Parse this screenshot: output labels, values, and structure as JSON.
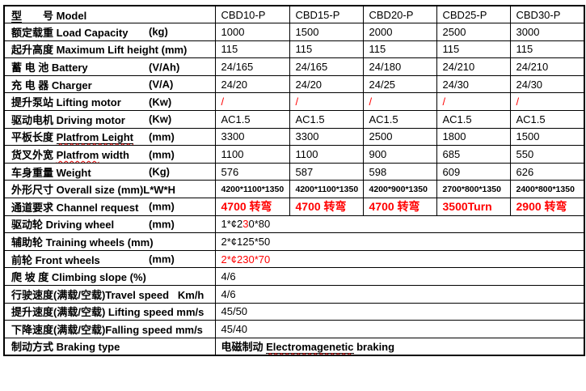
{
  "colors": {
    "accent_red": "#ff0000",
    "border": "#000000",
    "background": "#ffffff"
  },
  "table": {
    "models": [
      "CBD10-P",
      "CBD15-P",
      "CBD20-P",
      "CBD25-P",
      "CBD30-P"
    ],
    "rows": [
      {
        "label": [
          {
            "t": "型",
            "u": true
          },
          {
            "t": "　　号 Model"
          }
        ],
        "unit": "",
        "values": [
          "CBD10-P",
          "CBD15-P",
          "CBD20-P",
          "CBD25-P",
          "CBD30-P"
        ]
      },
      {
        "label": "额定载重 Load Capacity",
        "unit": "(kg)",
        "values": [
          "1000",
          "1500",
          "2000",
          "2500",
          "3000"
        ]
      },
      {
        "label": "起升高度 Maximum Lift height (mm)",
        "unit": "",
        "values": [
          "115",
          "115",
          "115",
          "115",
          "115"
        ]
      },
      {
        "label": "蓄 电 池 Battery",
        "unit": "(V/Ah)",
        "values": [
          "24/165",
          "24/165",
          "24/180",
          "24/210",
          "24/210"
        ]
      },
      {
        "label": "充 电 器 Charger",
        "unit": "(V/A)",
        "values": [
          "24/20",
          "24/20",
          "24/25",
          "24/30",
          "24/30"
        ]
      },
      {
        "label": "提升泵站 Lifting motor",
        "unit": "(Kw)",
        "values": [
          "/",
          "/",
          "/",
          "/",
          "/"
        ],
        "vclass": "red"
      },
      {
        "label": "驱动电机 Driving motor",
        "unit": "(Kw)",
        "values": [
          "AC1.5",
          "AC1.5",
          "AC1.5",
          "AC1.5",
          "AC1.5"
        ]
      },
      {
        "label": [
          "平板长度 ",
          {
            "t": "Platfrom Leight",
            "u": true,
            "sp": true
          }
        ],
        "unit": "(mm)",
        "values": [
          "3300",
          "3300",
          "2500",
          "1800",
          "1500"
        ]
      },
      {
        "label": [
          "货叉外宽 ",
          {
            "t": "Platfrom",
            "sp": true
          },
          {
            "t": " width"
          }
        ],
        "unit": "(mm)",
        "values": [
          "1100",
          "1100",
          "900",
          "685",
          "550"
        ]
      },
      {
        "label": "车身重量 Weight",
        "unit": "(Kg)",
        "values": [
          "576",
          "587",
          "598",
          "609",
          "626"
        ]
      },
      {
        "label": "外形尺寸 Overall size (mm)L*W*H",
        "unit": "",
        "values": [
          "4200*1100*1350",
          "4200*1100*1350",
          "4200*900*1350",
          "2700*800*1350",
          "2400*800*1350"
        ],
        "vclass": "small"
      },
      {
        "label": "通道要求 Channel request",
        "unit": "(mm)",
        "values": [
          "4700 转弯",
          "4700 转弯",
          "4700 转弯",
          "3500Turn",
          "2900 转弯"
        ],
        "vclass": "red chan"
      },
      {
        "label": "驱动轮 Driving wheel",
        "unit": "(mm)",
        "merged": [
          {
            "t": "1*¢2"
          },
          {
            "t": "3",
            "red": true
          },
          {
            "t": "0*80"
          }
        ]
      },
      {
        "label": "辅助轮 Training wheels (mm)",
        "unit": "",
        "merged": "2*¢125*50"
      },
      {
        "label": "前轮 Front wheels",
        "unit": "(mm)",
        "merged": [
          {
            "t": "2*¢230*70",
            "red": true
          }
        ]
      },
      {
        "label": "爬 坡 度 Climbing slope (%)",
        "unit": "",
        "merged": "4/6"
      },
      {
        "label": "行驶速度(满载/空载)Travel speed   Km/h",
        "unit": "",
        "merged": "4/6"
      },
      {
        "label": "提升速度(满载/空载) Lifting speed mm/s",
        "unit": "",
        "merged": "45/50"
      },
      {
        "label": "下降速度(满载/空载)Falling speed mm/s",
        "unit": "",
        "merged": "45/40"
      },
      {
        "label": "制动方式 Braking type",
        "unit": "",
        "merged": [
          "电磁制动 ",
          {
            "t": "Electromagenetic",
            "u": true,
            "sp": true
          },
          {
            "t": " braking"
          }
        ],
        "vclass": "vbold"
      }
    ]
  }
}
